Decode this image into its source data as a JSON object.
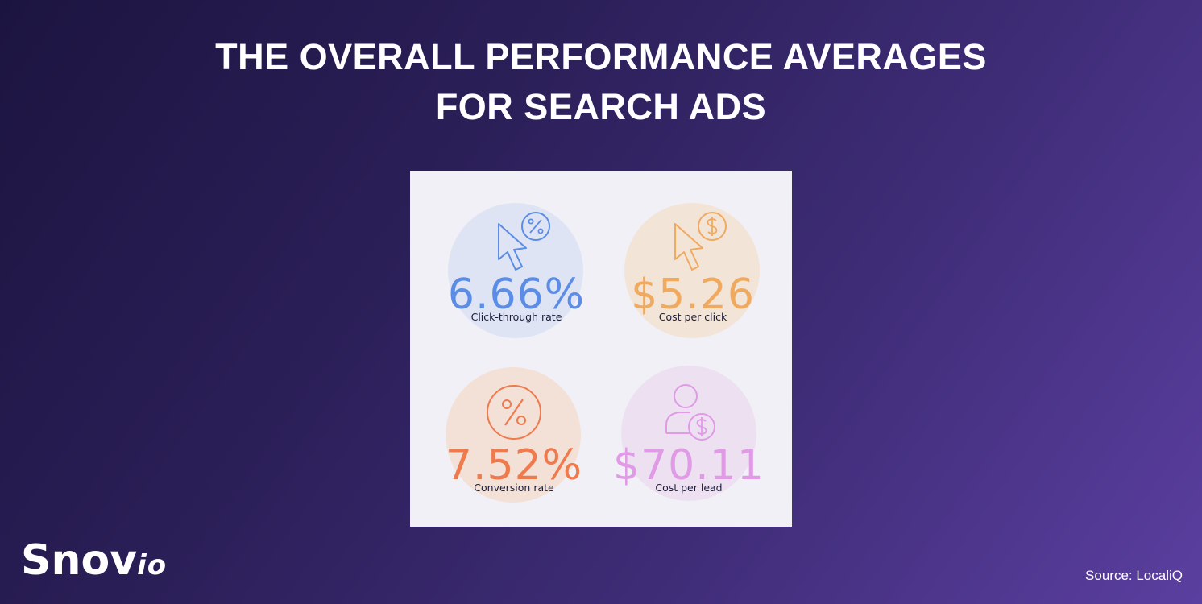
{
  "title": {
    "line1": "THE OVERALL PERFORMANCE AVERAGES",
    "line2": "FOR SEARCH ADS"
  },
  "metrics": [
    {
      "value": "6.66%",
      "label": "Click-through rate",
      "icon": "cursor-percent-icon",
      "color": "#5b8de6",
      "circle_color": "#dfe4f4"
    },
    {
      "value": "$5.26",
      "label": "Cost per click",
      "icon": "cursor-dollar-icon",
      "color": "#f0aa60",
      "circle_color": "#f3e4d8"
    },
    {
      "value": "7.52%",
      "label": "Conversion rate",
      "icon": "percent-circle-icon",
      "color": "#ef7a4c",
      "circle_color": "#f3e1d8"
    },
    {
      "value": "$70.11",
      "label": "Cost per lead",
      "icon": "user-dollar-icon",
      "color": "#e09ae6",
      "circle_color": "#ede1f1"
    }
  ],
  "brand": {
    "name": "Snov",
    "suffix": "io"
  },
  "source": "Source: LocaliQ"
}
